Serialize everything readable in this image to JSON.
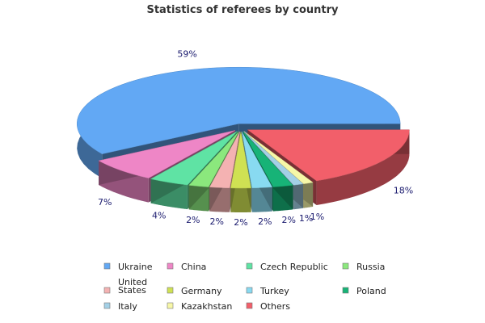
{
  "chart_data": {
    "type": "pie",
    "title": "Statistics of referees by country",
    "style": "3d-exploded",
    "legend_position": "bottom",
    "series": [
      {
        "name": "Ukraine",
        "legend_label": [
          "Ukraine"
        ],
        "value": 59,
        "label": "59%",
        "color": "#62a8f4"
      },
      {
        "name": "China",
        "legend_label": [
          "China"
        ],
        "value": 7,
        "label": "7%",
        "color": "#ee86c6"
      },
      {
        "name": "Czech Republic",
        "legend_label": [
          "Czech Republic"
        ],
        "value": 4,
        "label": "4%",
        "color": "#5fe3a4"
      },
      {
        "name": "Russia",
        "legend_label": [
          "Russia"
        ],
        "value": 2,
        "label": "2%",
        "color": "#8be87d"
      },
      {
        "name": "United States",
        "legend_label": [
          "United",
          "States"
        ],
        "value": 2,
        "label": "2%",
        "color": "#f4b2b2"
      },
      {
        "name": "Germany",
        "legend_label": [
          "Germany"
        ],
        "value": 2,
        "label": "2%",
        "color": "#cfe153"
      },
      {
        "name": "Turkey",
        "legend_label": [
          "Turkey"
        ],
        "value": 2,
        "label": "2%",
        "color": "#88daf1"
      },
      {
        "name": "Poland",
        "legend_label": [
          "Poland"
        ],
        "value": 2,
        "label": "2%",
        "color": "#17b377"
      },
      {
        "name": "Italy",
        "legend_label": [
          "Italy"
        ],
        "value": 1,
        "label": "1%",
        "color": "#a3d0e6"
      },
      {
        "name": "Kazakhstan",
        "legend_label": [
          "Kazakhstan"
        ],
        "value": 1,
        "label": "1%",
        "color": "#f7f7a7"
      },
      {
        "name": "Others",
        "legend_label": [
          "Others"
        ],
        "value": 18,
        "label": "18%",
        "color": "#f25f6a"
      }
    ]
  }
}
